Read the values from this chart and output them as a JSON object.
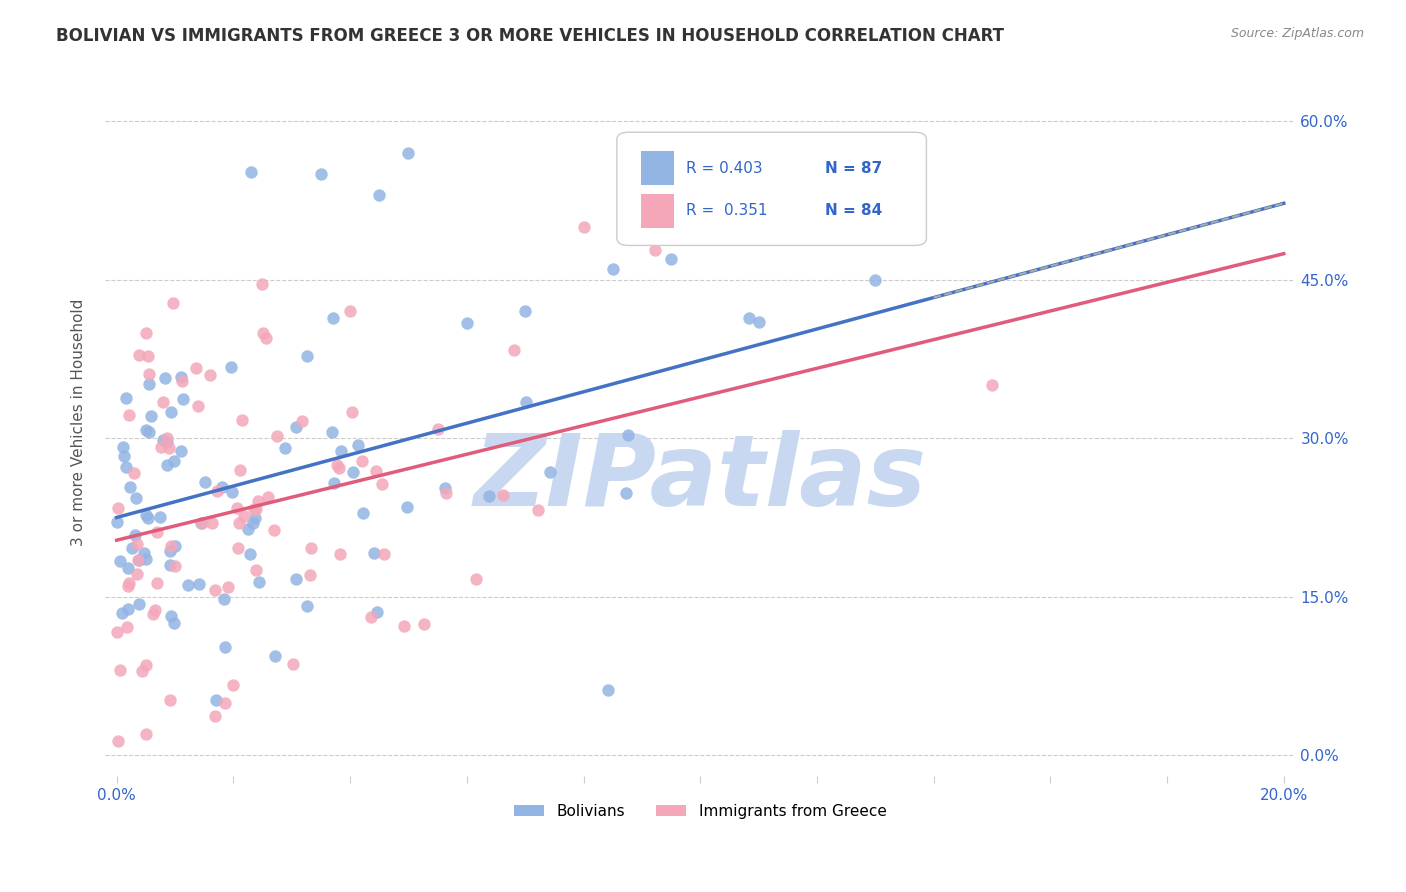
{
  "title": "BOLIVIAN VS IMMIGRANTS FROM GREECE 3 OR MORE VEHICLES IN HOUSEHOLD CORRELATION CHART",
  "source": "Source: ZipAtlas.com",
  "ylabel": "3 or more Vehicles in Household",
  "bolivians_color": "#92b4e3",
  "greece_color": "#f4a7b9",
  "trend_bolivians_color": "#4472c4",
  "trend_greece_color": "#e05c7a",
  "trend_dashed_color": "#aaaaaa",
  "watermark_color": "#c8d8f0",
  "watermark_text": "ZIPatlas",
  "legend_R_bolivians": "R = 0.403",
  "legend_N_bolivians": "N = 87",
  "legend_R_greece": "R =  0.351",
  "legend_N_greece": "N = 84",
  "bolivians_R": 0.403,
  "bolivians_N": 87,
  "greece_R": 0.351,
  "greece_N": 84
}
